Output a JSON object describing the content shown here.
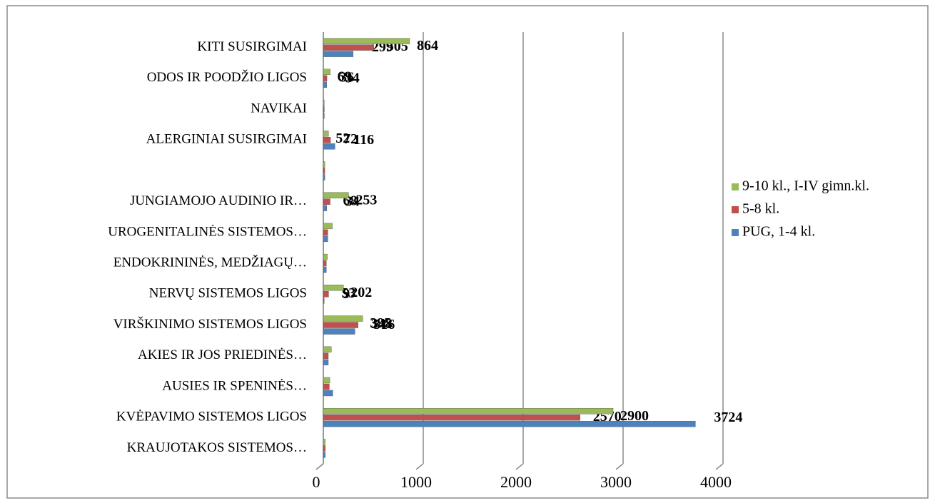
{
  "chart_data": {
    "type": "barh",
    "categories": [
      "KITI  SUSIRGIMAI",
      "ODOS IR POODŽIO LIGOS",
      "NAVIKAI",
      "ALERGINIAI SUSIRGIMAI",
      null,
      "JUNGIAMOJO AUDINIO IR…",
      "UROGENITALINĖS SISTEMOS…",
      "ENDOKRININĖS, MEDŽIAGŲ…",
      "NERVŲ SISTEMOS LIGOS",
      "VIRŠKINIMO SISTEMOS LIGOS",
      "AKIES IR JOS PRIEDINĖS…",
      "AUSIES IR SPENINĖS…",
      "KVĖPAVIMO SISTEMOS LIGOS",
      "KRAUJOTAKOS SISTEMOS…"
    ],
    "series": [
      {
        "name": "PUG, 1-4 kl.",
        "color": "#4f81bd",
        "values": [
          299,
          34,
          10,
          116,
          15,
          34,
          45,
          30,
          9,
          316,
          50,
          95,
          3724,
          20
        ],
        "value_labels": [
          "299",
          "34",
          null,
          "116",
          null,
          "34",
          null,
          null,
          "9",
          "316",
          null,
          null,
          "3724",
          null
        ]
      },
      {
        "name": "5-8 kl.",
        "color": "#c0504d",
        "values": [
          505,
          36,
          10,
          72,
          15,
          68,
          45,
          30,
          53,
          348,
          50,
          60,
          2570,
          20
        ],
        "value_labels": [
          "505",
          "36",
          null,
          "72",
          null,
          "68",
          null,
          null,
          "53",
          "348",
          null,
          null,
          "2570",
          null
        ]
      },
      {
        "name": "9-10 kl., I-IV gimn.kl.",
        "color": "#9bbb59",
        "values": [
          864,
          69,
          10,
          52,
          15,
          253,
          90,
          40,
          202,
          395,
          80,
          65,
          2900,
          20
        ],
        "value_labels": [
          "864",
          "69",
          null,
          "52",
          null,
          "253",
          null,
          null,
          "202",
          "395",
          null,
          null,
          "2900",
          null
        ]
      }
    ],
    "xlim": [
      0,
      4000
    ],
    "xticks": [
      0,
      1000,
      2000,
      3000,
      4000
    ],
    "grid": true,
    "legend": "right"
  }
}
